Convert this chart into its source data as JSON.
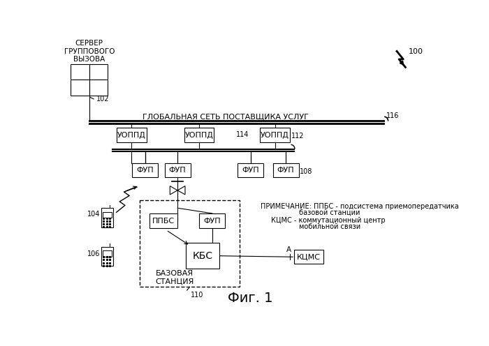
{
  "title": "Фиг. 1",
  "background_color": "#ffffff",
  "network_label": "ГЛОБАЛЬНАЯ СЕТЬ ПОСТАВЩИКА УСЛУГ",
  "server_label": "СЕРВЕР\nГРУППОВОГО\nВЫЗОВА",
  "base_station_label": "БАЗОВАЯ\nСТАНЦИЯ",
  "note_line1": "ПРИМЕЧАНИЕ: ППБС - подсистема приемопередатчика",
  "note_line2": "базовой станции",
  "note_line3": "КЦМС - коммутационный центр",
  "note_line4": "мобильной связи"
}
